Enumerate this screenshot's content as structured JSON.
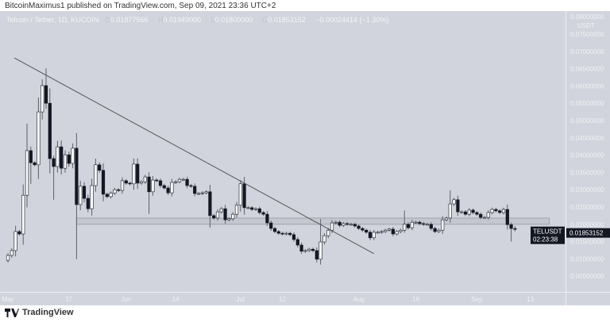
{
  "publisher_line": "BitcoinMaximus1 published on TradingView.com, Sep 09, 2021 23:36 UTC+2",
  "legend": {
    "symbol": "Telcoin / Tether, 1D, KUCOIN",
    "open_label": "O",
    "open": "0.01877566",
    "high_label": "H",
    "high": "0.01949000",
    "low_label": "L",
    "low": "0.01800000",
    "close_label": "C",
    "close": "0.01853152",
    "change": "−0.00024414 (−1.30%)"
  },
  "price_tag": {
    "symbol": "TELUSDT",
    "price": "0.01853152",
    "countdown": "02:23:38"
  },
  "footer": {
    "brand": "TradingView",
    "logo_icon": "tradingview-logo-icon"
  },
  "colors": {
    "background": "#d1d4dc",
    "up": "#ffffff",
    "down": "#131722",
    "line": "#555555",
    "zone": "#b2b5be"
  },
  "chart_data": {
    "type": "candlestick",
    "axis_unit": "USDT",
    "ylim": [
      0,
      0.08
    ],
    "y_ticks": [
      "0.00500000",
      "0.01000000",
      "0.01500000",
      "0.02000000",
      "0.02500000",
      "0.03000000",
      "0.03500000",
      "0.04000000",
      "0.04500000",
      "0.05000000",
      "0.05500000",
      "0.06000000",
      "0.06500000",
      "0.07000000",
      "0.07500000",
      "0.08000000"
    ],
    "x_ticks": [
      {
        "label": "May",
        "day": 0
      },
      {
        "label": "17",
        "day": 16
      },
      {
        "label": "Jun",
        "day": 31
      },
      {
        "label": "14",
        "day": 44
      },
      {
        "label": "Jul",
        "day": 61
      },
      {
        "label": "12",
        "day": 72
      },
      {
        "label": "Aug",
        "day": 92
      },
      {
        "label": "16",
        "day": 107
      },
      {
        "label": "Sep",
        "day": 123
      },
      {
        "label": "13",
        "day": 137
      }
    ],
    "first_open": 0.0096,
    "closes": [
      0.011,
      0.0124,
      0.0179,
      0.0172,
      0.0284,
      0.0413,
      0.0378,
      0.0372,
      0.0525,
      0.0601,
      0.055,
      0.039,
      0.0367,
      0.0424,
      0.0362,
      0.0401,
      0.0376,
      0.042,
      0.0257,
      0.031,
      0.0275,
      0.0245,
      0.0312,
      0.0372,
      0.0356,
      0.0287,
      0.028,
      0.029,
      0.03,
      0.0298,
      0.0326,
      0.0319,
      0.0317,
      0.0374,
      0.0319,
      0.0323,
      0.0337,
      0.0294,
      0.0328,
      0.0326,
      0.0312,
      0.0305,
      0.0291,
      0.0321,
      0.0323,
      0.033,
      0.033,
      0.0312,
      0.031,
      0.0289,
      0.0289,
      0.0291,
      0.0294,
      0.0225,
      0.0218,
      0.0236,
      0.0245,
      0.0213,
      0.0216,
      0.0229,
      0.0255,
      0.0317,
      0.0248,
      0.0248,
      0.0243,
      0.0245,
      0.0234,
      0.0229,
      0.0204,
      0.0188,
      0.0179,
      0.0174,
      0.0172,
      0.0174,
      0.017,
      0.0156,
      0.014,
      0.0122,
      0.0124,
      0.0128,
      0.0124,
      0.0099,
      0.0149,
      0.0167,
      0.0183,
      0.0204,
      0.0206,
      0.0197,
      0.0202,
      0.02,
      0.02,
      0.0195,
      0.0188,
      0.0183,
      0.0177,
      0.0161,
      0.0177,
      0.0177,
      0.0179,
      0.0183,
      0.0186,
      0.0172,
      0.0179,
      0.0183,
      0.02,
      0.019,
      0.0206,
      0.0206,
      0.0202,
      0.02,
      0.02,
      0.0188,
      0.0179,
      0.0183,
      0.0213,
      0.0218,
      0.0259,
      0.0271,
      0.0236,
      0.0236,
      0.0229,
      0.0241,
      0.0234,
      0.0229,
      0.022,
      0.022,
      0.0234,
      0.0243,
      0.0239,
      0.0234,
      0.0243,
      0.0199,
      0.01877566,
      0.01853152
    ],
    "wicks": {
      "5": {
        "h": 0.0491
      },
      "6": {
        "l": 0.0317
      },
      "9": {
        "h": 0.0619
      },
      "10": {
        "h": 0.0651
      },
      "12": {
        "l": 0.0271
      },
      "18": {
        "l": 0.0099
      },
      "33": {
        "h": 0.039
      },
      "37": {
        "l": 0.023
      },
      "53": {
        "l": 0.019
      },
      "61": {
        "h": 0.0328
      },
      "82": {
        "h": 0.0215
      },
      "104": {
        "h": 0.024
      },
      "116": {
        "h": 0.0298
      },
      "132": {
        "l": 0.015
      },
      "133": {
        "h": 0.01949,
        "l": 0.018
      }
    },
    "trendline": {
      "start": {
        "day": 1.7,
        "price": 0.0681
      },
      "end": {
        "day": 96,
        "price": 0.0115
      }
    },
    "zone": {
      "start_day": 18,
      "end_day": 142,
      "low": 0.02,
      "high": 0.0218
    }
  }
}
